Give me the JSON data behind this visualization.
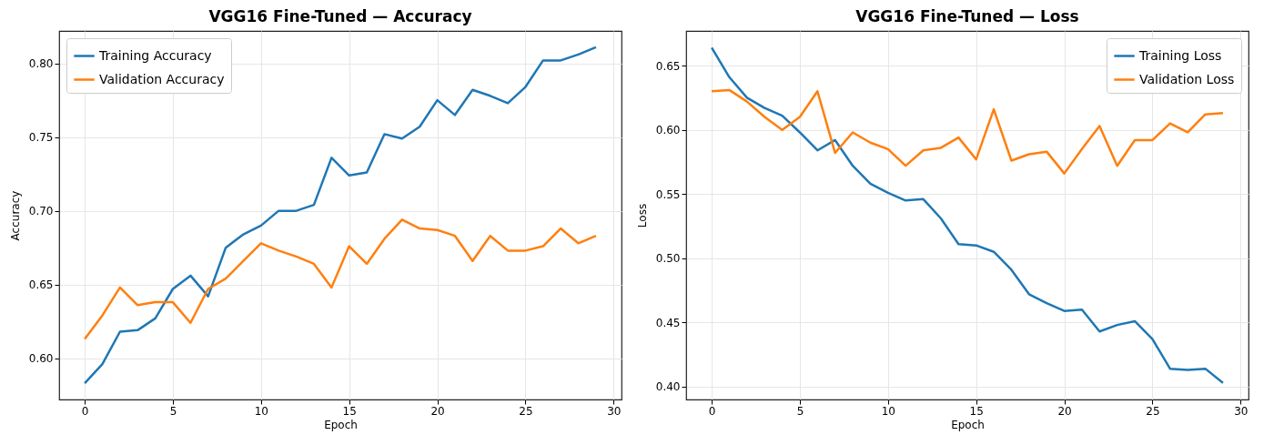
{
  "chart_data": [
    {
      "type": "line",
      "title": "VGG16 Fine-Tuned — Accuracy",
      "xlabel": "Epoch",
      "ylabel": "Accuracy",
      "x": [
        0,
        1,
        2,
        3,
        4,
        5,
        6,
        7,
        8,
        9,
        10,
        11,
        12,
        13,
        14,
        15,
        16,
        17,
        18,
        19,
        20,
        21,
        22,
        23,
        24,
        25,
        26,
        27,
        28,
        29
      ],
      "series": [
        {
          "name": "Training Accuracy",
          "color": "#1f77b4",
          "values": [
            0.583,
            0.596,
            0.618,
            0.619,
            0.627,
            0.647,
            0.656,
            0.642,
            0.675,
            0.684,
            0.69,
            0.7,
            0.7,
            0.704,
            0.736,
            0.724,
            0.726,
            0.752,
            0.749,
            0.757,
            0.775,
            0.765,
            0.782,
            0.778,
            0.773,
            0.784,
            0.802,
            0.802,
            0.806,
            0.811
          ]
        },
        {
          "name": "Validation Accuracy",
          "color": "#ff7f0e",
          "values": [
            0.613,
            0.629,
            0.648,
            0.636,
            0.638,
            0.638,
            0.624,
            0.647,
            0.654,
            0.666,
            0.678,
            0.673,
            0.669,
            0.664,
            0.648,
            0.676,
            0.664,
            0.681,
            0.694,
            0.688,
            0.687,
            0.683,
            0.666,
            0.683,
            0.673,
            0.673,
            0.676,
            0.688,
            0.678,
            0.683
          ]
        }
      ],
      "xlim": [
        -1.45,
        30.45
      ],
      "ylim": [
        0.572,
        0.822
      ],
      "xticks": [
        0,
        5,
        10,
        15,
        20,
        25,
        30
      ],
      "yticks": [
        {
          "value": 0.6,
          "label": "0.60"
        },
        {
          "value": 0.65,
          "label": "0.65"
        },
        {
          "value": 0.7,
          "label": "0.70"
        },
        {
          "value": 0.75,
          "label": "0.75"
        },
        {
          "value": 0.8,
          "label": "0.80"
        }
      ],
      "grid": true,
      "legend": "top left"
    },
    {
      "type": "line",
      "title": "VGG16 Fine-Tuned — Loss",
      "xlabel": "Epoch",
      "ylabel": "Loss",
      "x": [
        0,
        1,
        2,
        3,
        4,
        5,
        6,
        7,
        8,
        9,
        10,
        11,
        12,
        13,
        14,
        15,
        16,
        17,
        18,
        19,
        20,
        21,
        22,
        23,
        24,
        25,
        26,
        27,
        28,
        29
      ],
      "series": [
        {
          "name": "Training Loss",
          "color": "#1f77b4",
          "values": [
            0.664,
            0.641,
            0.625,
            0.617,
            0.611,
            0.598,
            0.584,
            0.592,
            0.572,
            0.558,
            0.551,
            0.545,
            0.546,
            0.531,
            0.511,
            0.51,
            0.505,
            0.491,
            0.472,
            0.465,
            0.459,
            0.46,
            0.443,
            0.448,
            0.451,
            0.437,
            0.414,
            0.413,
            0.414,
            0.403
          ]
        },
        {
          "name": "Validation Loss",
          "color": "#ff7f0e",
          "values": [
            0.63,
            0.631,
            0.622,
            0.61,
            0.6,
            0.61,
            0.63,
            0.582,
            0.598,
            0.59,
            0.585,
            0.572,
            0.584,
            0.586,
            0.594,
            0.577,
            0.616,
            0.576,
            0.581,
            0.583,
            0.566,
            0.585,
            0.603,
            0.572,
            0.592,
            0.592,
            0.605,
            0.598,
            0.612,
            0.613
          ]
        }
      ],
      "xlim": [
        -1.45,
        30.45
      ],
      "ylim": [
        0.39,
        0.677
      ],
      "xticks": [
        0,
        5,
        10,
        15,
        20,
        25,
        30
      ],
      "yticks": [
        {
          "value": 0.4,
          "label": "0.40"
        },
        {
          "value": 0.45,
          "label": "0.45"
        },
        {
          "value": 0.5,
          "label": "0.50"
        },
        {
          "value": 0.55,
          "label": "0.55"
        },
        {
          "value": 0.6,
          "label": "0.60"
        },
        {
          "value": 0.65,
          "label": "0.65"
        }
      ],
      "grid": true,
      "legend": "top right"
    }
  ]
}
